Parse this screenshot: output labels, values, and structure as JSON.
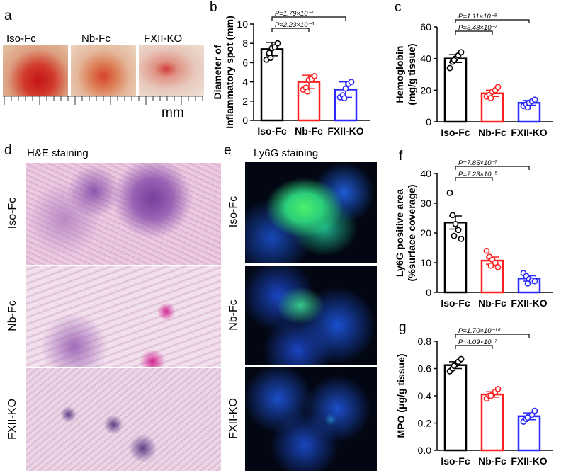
{
  "panels": {
    "a": {
      "letter": "a",
      "labels": [
        "Iso-Fc",
        "Nb-Fc",
        "FXII-KO"
      ],
      "unit": "mm"
    },
    "b": {
      "letter": "b"
    },
    "c": {
      "letter": "c"
    },
    "d": {
      "letter": "d",
      "title": "H&E staining",
      "rows": [
        "Iso-Fc",
        "Nb-Fc",
        "FXII-KO"
      ]
    },
    "e": {
      "letter": "e",
      "title": "Ly6G staining",
      "rows": [
        "Iso-Fc",
        "Nb-Fc",
        "FXII-KO"
      ]
    },
    "f": {
      "letter": "f"
    },
    "g": {
      "letter": "g"
    }
  },
  "colors": {
    "Iso-Fc": "#000000",
    "Nb-Fc": "#ff2020",
    "FXII-KO": "#2a2aff"
  },
  "chart_data": [
    {
      "id": "b",
      "type": "bar",
      "categories": [
        "Iso-Fc",
        "Nb-Fc",
        "FXII-KO"
      ],
      "values": [
        7.4,
        4.0,
        3.2
      ],
      "sd": [
        0.7,
        0.7,
        0.8
      ],
      "points": [
        [
          6.3,
          7.0,
          7.5,
          7.6,
          8.0,
          6.5
        ],
        [
          3.2,
          3.4,
          4.2,
          4.3,
          4.6,
          3.0
        ],
        [
          2.4,
          2.6,
          3.3,
          3.8,
          4.0,
          2.3
        ]
      ],
      "ylabel": [
        "Diameter of",
        "Inflammatory spot (mm)"
      ],
      "ylim": [
        0,
        10
      ],
      "yticks": [
        0,
        2,
        4,
        6,
        8,
        10
      ],
      "pvalues": [
        {
          "from": 0,
          "to": 1,
          "label": "P=2.23×10⁻⁶"
        },
        {
          "from": 0,
          "to": 2,
          "label": "P=1.79×10⁻⁷"
        }
      ]
    },
    {
      "id": "c",
      "type": "bar",
      "categories": [
        "Iso-Fc",
        "Nb-Fc",
        "FXII-KO"
      ],
      "values": [
        40,
        18,
        12
      ],
      "sd": [
        2.5,
        2.0,
        1.5
      ],
      "points": [
        [
          34,
          38,
          40,
          42,
          44,
          39
        ],
        [
          16,
          17,
          19,
          20,
          22,
          15
        ],
        [
          10,
          11,
          12,
          13,
          14,
          9
        ]
      ],
      "ylabel": [
        "Hemoglobin",
        "(mg/g tissue)"
      ],
      "ylim": [
        0,
        60
      ],
      "yticks": [
        0,
        20,
        40,
        60
      ],
      "pvalues": [
        {
          "from": 0,
          "to": 1,
          "label": "P=3.48×10⁻⁷"
        },
        {
          "from": 0,
          "to": 2,
          "label": "P=1.11×10⁻⁸"
        }
      ]
    },
    {
      "id": "f",
      "type": "bar",
      "categories": [
        "Iso-Fc",
        "Nb-Fc",
        "FXII-KO"
      ],
      "values": [
        23.5,
        10.7,
        4.7
      ],
      "sd": [
        2.2,
        1.2,
        0.9
      ],
      "points": [
        [
          33.5,
          26,
          23,
          21,
          18,
          19
        ],
        [
          14,
          12,
          11,
          10,
          8.5,
          9
        ],
        [
          6.5,
          5.5,
          4.5,
          4,
          3.8,
          3
        ]
      ],
      "ylabel": [
        "Ly6G positive area",
        "(%surface coverage)"
      ],
      "ylim": [
        0,
        40
      ],
      "yticks": [
        0,
        10,
        20,
        30,
        40
      ],
      "pvalues": [
        {
          "from": 0,
          "to": 1,
          "label": "P=7.23×10⁻⁵"
        },
        {
          "from": 0,
          "to": 2,
          "label": "P=7.85×10⁻⁷"
        }
      ]
    },
    {
      "id": "g",
      "type": "bar",
      "categories": [
        "Iso-Fc",
        "Nb-Fc",
        "FXII-KO"
      ],
      "values": [
        0.625,
        0.41,
        0.25
      ],
      "sd": [
        0.025,
        0.02,
        0.025
      ],
      "points": [
        [
          0.58,
          0.6,
          0.63,
          0.65,
          0.67,
          0.62
        ],
        [
          0.38,
          0.4,
          0.41,
          0.43,
          0.45,
          0.4
        ],
        [
          0.21,
          0.23,
          0.25,
          0.26,
          0.29,
          0.24
        ]
      ],
      "ylabel": [
        "MPO (μg/g tissue)"
      ],
      "ylim": [
        0,
        0.8
      ],
      "yticks": [
        "0.0",
        "0.2",
        "0.4",
        "0.6",
        "0.8"
      ],
      "pvalues": [
        {
          "from": 0,
          "to": 1,
          "label": "P=4.09×10⁻⁷"
        },
        {
          "from": 0,
          "to": 2,
          "label": "P=1.70×10⁻¹⁰"
        }
      ]
    }
  ]
}
